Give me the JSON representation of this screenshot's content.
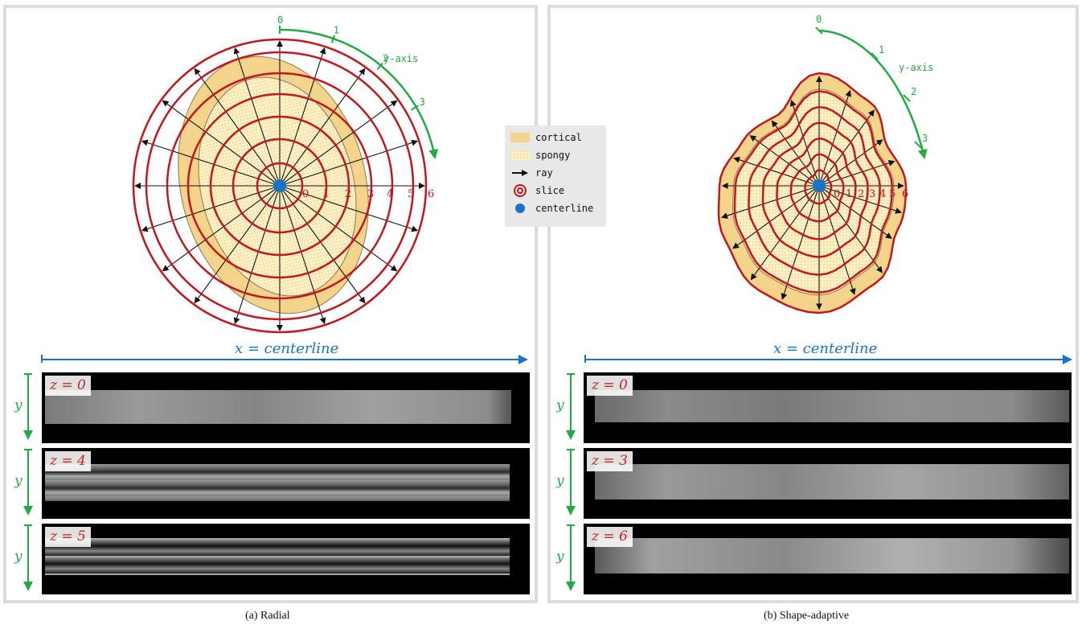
{
  "legend": {
    "cortical": "cortical",
    "spongy": "spongy",
    "ray": "ray",
    "slice": "slice",
    "centerline": "centerline"
  },
  "colors": {
    "cortical": "#f4d38a",
    "spongy": "#fdf0c4",
    "ring": "#c0181e",
    "ray": "#111111",
    "axis_green": "#22aa44",
    "axis_blue": "#1a73c4",
    "centerline_dot": "#1a73c4"
  },
  "panel_a": {
    "caption": "(a) Radial",
    "x_axis_label": "x = centerline",
    "y_axis_label": "y-axis",
    "y_ticks": [
      "0",
      "1",
      "2",
      "3"
    ],
    "slice_labels": [
      "0",
      "1",
      "2",
      "3",
      "4",
      "5",
      "6"
    ],
    "slab_y_label": "y",
    "slabs": [
      {
        "label": "z = 0"
      },
      {
        "label": "z = 4"
      },
      {
        "label": "z = 5"
      }
    ]
  },
  "panel_b": {
    "caption": "(b) Shape-adaptive",
    "x_axis_label": "x = centerline",
    "y_axis_label": "y-axis",
    "y_ticks": [
      "0",
      "1",
      "2",
      "3"
    ],
    "slice_labels": [
      "0",
      "1",
      "2",
      "3",
      "4",
      "5",
      "6"
    ],
    "slab_y_label": "y",
    "slabs": [
      {
        "label": "z = 0"
      },
      {
        "label": "z = 3"
      },
      {
        "label": "z = 6"
      }
    ]
  }
}
